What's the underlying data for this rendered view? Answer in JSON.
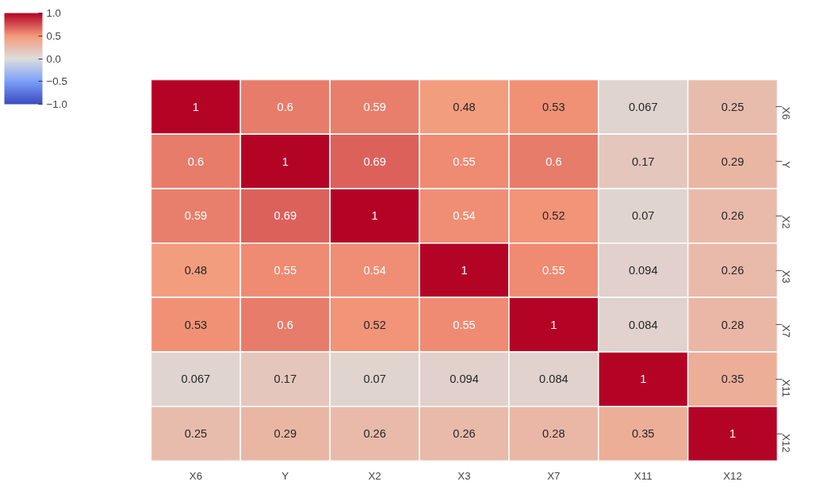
{
  "chart_data": {
    "type": "heatmap",
    "categories": [
      "X6",
      "Y",
      "X2",
      "X3",
      "X7",
      "X11",
      "X12"
    ],
    "y_categories": [
      "X6",
      "Y",
      "X2",
      "X3",
      "X7",
      "X11",
      "X12"
    ],
    "cells": [
      [
        1,
        0.6,
        0.59,
        0.48,
        0.53,
        0.067,
        0.25
      ],
      [
        0.6,
        1,
        0.69,
        0.55,
        0.6,
        0.17,
        0.29
      ],
      [
        0.59,
        0.69,
        1,
        0.54,
        0.52,
        0.07,
        0.26
      ],
      [
        0.48,
        0.55,
        0.54,
        1,
        0.55,
        0.094,
        0.26
      ],
      [
        0.53,
        0.6,
        0.52,
        0.55,
        1,
        0.084,
        0.28
      ],
      [
        0.067,
        0.17,
        0.07,
        0.094,
        0.084,
        1,
        0.35
      ],
      [
        0.25,
        0.29,
        0.26,
        0.26,
        0.28,
        0.35,
        1
      ]
    ],
    "clim": [
      -1.0,
      1.0
    ],
    "cticks": [
      {
        "value": -1.0,
        "label": "−1.0"
      },
      {
        "value": -0.5,
        "label": "−0.5"
      },
      {
        "value": 0.0,
        "label": "0.0"
      },
      {
        "value": 0.5,
        "label": "0.5"
      },
      {
        "value": 1.0,
        "label": "1.0"
      }
    ],
    "data_labels": true
  }
}
